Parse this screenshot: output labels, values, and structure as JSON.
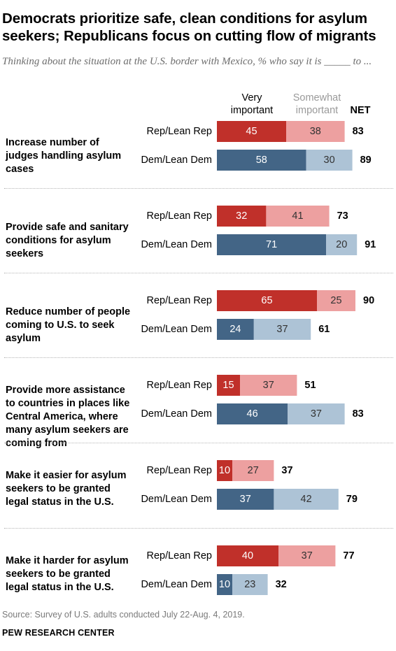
{
  "title": "Democrats prioritize safe, clean conditions for asylum seekers; Republicans focus on cutting flow of migrants",
  "subtitle": "Thinking about the situation at the U.S. border with Mexico, % who say it is _____ to ...",
  "headers": {
    "very": "Very important",
    "somewhat": "Somewhat important",
    "net": "NET"
  },
  "colors": {
    "rep_very": "#c0302a",
    "rep_somewhat": "#eda0a0",
    "dem_very": "#436586",
    "dem_somewhat": "#adc3d6"
  },
  "chart_data": {
    "type": "bar",
    "orientation": "horizontal",
    "stacked": true,
    "groups": [
      "Rep/Lean Rep",
      "Dem/Lean Dem"
    ],
    "series_names": [
      "Very important",
      "Somewhat important",
      "NET"
    ],
    "categories": [
      {
        "label": "Increase number of judges handling asylum cases",
        "rows": [
          {
            "group": "Rep/Lean Rep",
            "very": 45,
            "somewhat": 38,
            "net": 83
          },
          {
            "group": "Dem/Lean Dem",
            "very": 58,
            "somewhat": 30,
            "net": 89
          }
        ]
      },
      {
        "label": "Provide safe and sanitary conditions for asylum seekers",
        "rows": [
          {
            "group": "Rep/Lean Rep",
            "very": 32,
            "somewhat": 41,
            "net": 73
          },
          {
            "group": "Dem/Lean Dem",
            "very": 71,
            "somewhat": 20,
            "net": 91
          }
        ]
      },
      {
        "label": "Reduce number of people coming to U.S. to seek asylum",
        "rows": [
          {
            "group": "Rep/Lean Rep",
            "very": 65,
            "somewhat": 25,
            "net": 90
          },
          {
            "group": "Dem/Lean Dem",
            "very": 24,
            "somewhat": 37,
            "net": 61
          }
        ]
      },
      {
        "label": "Provide more assistance to countries in places like Central America, where many asylum seekers are coming from",
        "rows": [
          {
            "group": "Rep/Lean Rep",
            "very": 15,
            "somewhat": 37,
            "net": 51
          },
          {
            "group": "Dem/Lean Dem",
            "very": 46,
            "somewhat": 37,
            "net": 83
          }
        ]
      },
      {
        "label": "Make it easier for asylum seekers to be granted legal status in the U.S.",
        "rows": [
          {
            "group": "Rep/Lean Rep",
            "very": 10,
            "somewhat": 27,
            "net": 37
          },
          {
            "group": "Dem/Lean Dem",
            "very": 37,
            "somewhat": 42,
            "net": 79
          }
        ]
      },
      {
        "label": "Make it harder for asylum seekers to be granted legal status in the U.S.",
        "rows": [
          {
            "group": "Rep/Lean Rep",
            "very": 40,
            "somewhat": 37,
            "net": 77
          },
          {
            "group": "Dem/Lean Dem",
            "very": 10,
            "somewhat": 23,
            "net": 32
          }
        ]
      }
    ]
  },
  "footer": {
    "source": "Source: Survey of U.S. adults conducted July 22-Aug. 4, 2019.",
    "credit": "PEW RESEARCH CENTER"
  }
}
